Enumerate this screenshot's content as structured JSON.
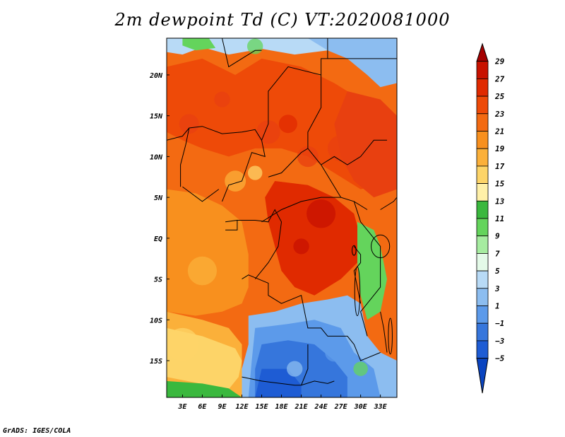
{
  "title": "2m dewpoint Td (C) VT:2020081000",
  "footer": "GrADS: IGES/COLA",
  "axes": {
    "lon_labels": [
      "3E",
      "6E",
      "9E",
      "12E",
      "15E",
      "18E",
      "21E",
      "24E",
      "27E",
      "30E",
      "33E"
    ],
    "lon_values": [
      3,
      6,
      9,
      12,
      15,
      18,
      21,
      24,
      27,
      30,
      33
    ],
    "lat_labels": [
      "20N",
      "15N",
      "10N",
      "5N",
      "EQ",
      "5S",
      "10S",
      "15S"
    ],
    "lat_values": [
      20,
      15,
      10,
      5,
      0,
      -5,
      -10,
      -15
    ],
    "lon_range": [
      0.6,
      35.5
    ],
    "lat_range": [
      -19.5,
      24.5
    ]
  },
  "colorbar": {
    "labels": [
      "29",
      "27",
      "25",
      "23",
      "21",
      "19",
      "17",
      "15",
      "13",
      "11",
      "9",
      "7",
      "5",
      "3",
      "1",
      "−1",
      "−3",
      "−5"
    ],
    "colors": [
      "#a40000",
      "#c81200",
      "#e02a00",
      "#ee4a08",
      "#f36a12",
      "#f8901e",
      "#fbb03a",
      "#fdd468",
      "#fff0a8",
      "#3ab83e",
      "#64d45c",
      "#a6eca0",
      "#e4fae8",
      "#b8daf6",
      "#8cbdf0",
      "#5c9aea",
      "#3676dc",
      "#1e5cd4",
      "#0a44c0"
    ]
  },
  "map": {
    "regions": [
      {
        "name": "central-belt",
        "color": "#f36a12"
      },
      {
        "name": "northern-sahel",
        "color": "#ee4a08"
      },
      {
        "name": "east-sudan",
        "color": "#e84010"
      },
      {
        "name": "congo-core",
        "color": "#e02a00"
      },
      {
        "name": "gulf-of-guinea",
        "color": "#f8901e"
      },
      {
        "name": "south-atlantic",
        "color": "#fbb03a"
      },
      {
        "name": "angola-coast",
        "color": "#fdd468"
      },
      {
        "name": "southern-plateau",
        "color": "#8cbdf0"
      },
      {
        "name": "southern-dry",
        "color": "#5c9aea"
      },
      {
        "name": "zambia-dry",
        "color": "#3676dc"
      },
      {
        "name": "far-south",
        "color": "#1e5cd4"
      },
      {
        "name": "sahara-north",
        "color": "#b8daf6"
      },
      {
        "name": "egypt-red-sea",
        "color": "#8cbdf0"
      },
      {
        "name": "libya-humid",
        "color": "#64d45c"
      },
      {
        "name": "great-lakes",
        "color": "#64d45c"
      },
      {
        "name": "atlantic-sw",
        "color": "#3ab83e"
      }
    ]
  }
}
